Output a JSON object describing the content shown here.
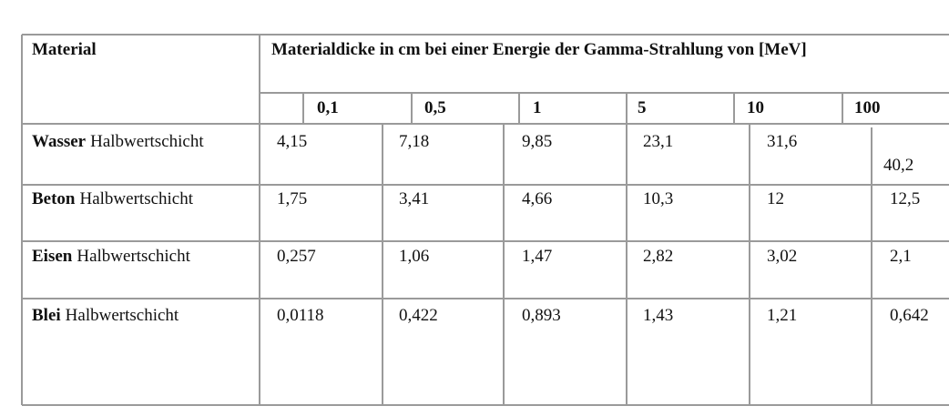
{
  "table": {
    "header": {
      "material": "Material",
      "title": "Materialdicke in cm bei einer Energie der Gamma-Strahlung von [MeV]"
    },
    "energies": [
      "0,1",
      "0,5",
      "1",
      "5",
      "10",
      "100"
    ],
    "rows": [
      {
        "material": "Wasser",
        "label": "Halbwertschicht",
        "values": [
          "4,15",
          "7,18",
          "9,85",
          "23,1",
          "31,6",
          "40,2"
        ]
      },
      {
        "material": "Beton",
        "label": "Halbwertschicht",
        "values": [
          "1,75",
          "3,41",
          "4,66",
          "10,3",
          "12",
          "12,5"
        ]
      },
      {
        "material": "Eisen",
        "label": "Halbwertschicht",
        "values": [
          "0,257",
          "1,06",
          "1,47",
          "2,82",
          "3,02",
          "2,1"
        ]
      },
      {
        "material": "Blei",
        "label": "Halbwertschicht",
        "values": [
          "0,0118",
          "0,422",
          "0,893",
          "1,43",
          "1,21",
          "0,642"
        ]
      }
    ]
  }
}
